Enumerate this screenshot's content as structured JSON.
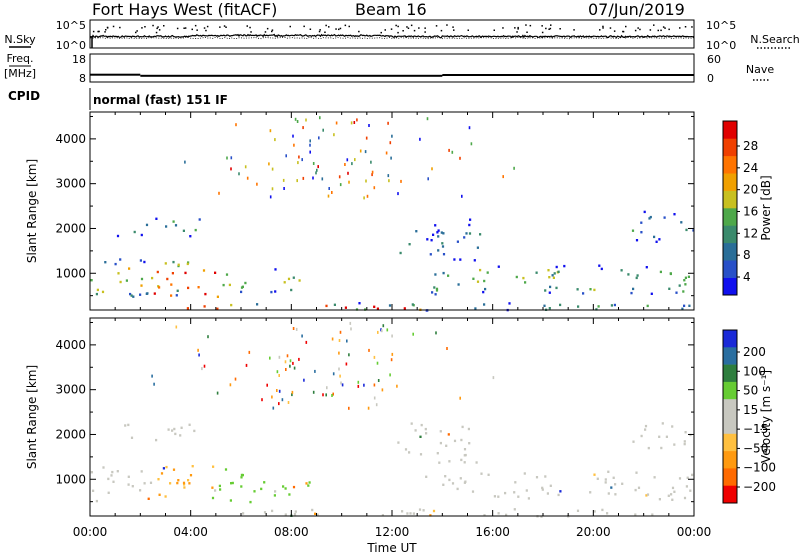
{
  "header": {
    "station": "Fort Hays West (fitACF)",
    "beam": "Beam 16",
    "date": "07/Jun/2019"
  },
  "chart_data": [
    {
      "type": "line",
      "panel": "noise",
      "left_label": "N.Sky",
      "right_label": "N.Search",
      "left_ticks": [
        "10^5",
        "10^0"
      ],
      "right_ticks": [
        "10^5",
        "10^0"
      ],
      "xlim": [
        0,
        24
      ],
      "series": [
        {
          "name": "N.Sky",
          "style": "solid dots",
          "level": 0.65
        },
        {
          "name": "N.Search",
          "style": "dotted",
          "level": 0.55
        }
      ]
    },
    {
      "type": "line",
      "panel": "frequency",
      "left_label": "Freq.",
      "left_unit": "[MHz]",
      "right_label": "Nave",
      "left_ticks": [
        "18",
        "8"
      ],
      "right_ticks": [
        "60",
        "0"
      ],
      "cpid_label": "CPID",
      "cpid_text": "normal (fast) 151 IF",
      "freq_segments": [
        {
          "x": [
            0,
            2
          ],
          "value": 10.6
        },
        {
          "x": [
            2,
            14
          ],
          "value": 10.2
        },
        {
          "x": [
            14,
            24
          ],
          "value": 10.5
        }
      ]
    },
    {
      "type": "heatmap",
      "panel": "power",
      "ylabel": "Slant Range [km]",
      "yticks": [
        1000,
        2000,
        3000,
        4000
      ],
      "ylim": [
        180,
        4600
      ],
      "xlim": [
        0,
        24
      ],
      "colorbar": {
        "label": "Power [dB]",
        "ticks": [
          4,
          8,
          12,
          16,
          20,
          24,
          28
        ],
        "colors": [
          "#1010ee",
          "#2850c8",
          "#2a6e98",
          "#3a8a6c",
          "#4ea84a",
          "#c8c020",
          "#f0a000",
          "#ff7400",
          "#f04000",
          "#e00000"
        ]
      },
      "regions": [
        {
          "t": [
            0,
            3.6
          ],
          "r": [
            500,
            1350
          ],
          "level": 0.55
        },
        {
          "t": [
            2.5,
            5.2
          ],
          "r": [
            450,
            1300
          ],
          "level": 0.8
        },
        {
          "t": [
            5.2,
            8.5
          ],
          "r": [
            600,
            1150
          ],
          "level": 0.45
        },
        {
          "t": [
            1.0,
            4.6
          ],
          "r": [
            1850,
            2250
          ],
          "level": 0.35
        },
        {
          "t": [
            13.2,
            24
          ],
          "r": [
            550,
            1200
          ],
          "level": 0.4
        },
        {
          "t": [
            12.2,
            15.5
          ],
          "r": [
            1300,
            2300
          ],
          "level": 0.2
        },
        {
          "t": [
            21.5,
            24
          ],
          "r": [
            1700,
            2400
          ],
          "level": 0.25
        },
        {
          "t": [
            3.5,
            14
          ],
          "r": [
            200,
            320
          ],
          "level": 0.85
        },
        {
          "t": [
            6,
            24
          ],
          "r": [
            190,
            360
          ],
          "level": 0.3
        }
      ]
    },
    {
      "type": "heatmap",
      "panel": "velocity",
      "ylabel": "Slant Range [km]",
      "yticks": [
        1000,
        2000,
        3000,
        4000
      ],
      "ylim": [
        180,
        4600
      ],
      "xlabel": "Time UT",
      "xticks": [
        "00:00",
        "04:00",
        "08:00",
        "12:00",
        "16:00",
        "20:00",
        "00:00"
      ],
      "xtick_hours": [
        0,
        4,
        8,
        12,
        16,
        20,
        24
      ],
      "xlim": [
        0,
        24
      ],
      "colorbar": {
        "label": "Velocity [m s⁻¹]",
        "ticks": [
          200,
          100,
          50,
          15,
          -15,
          -50,
          -100,
          -200
        ],
        "colors": [
          "#1a2ad8",
          "#2a6ea0",
          "#2e7e3e",
          "#66cc33",
          "#c8c8c0",
          "#c8c8c0",
          "#ffc040",
          "#ff9a10",
          "#ff6a00",
          "#ef0000"
        ]
      },
      "regions": [
        {
          "t": [
            0,
            2.5
          ],
          "r": [
            500,
            1350
          ],
          "class": "gray"
        },
        {
          "t": [
            2.5,
            5.0
          ],
          "r": [
            450,
            1350
          ],
          "class": "orange"
        },
        {
          "t": [
            4.8,
            8.8
          ],
          "r": [
            500,
            1250
          ],
          "class": "green"
        },
        {
          "t": [
            1.0,
            4.6
          ],
          "r": [
            1850,
            2250
          ],
          "class": "gray"
        },
        {
          "t": [
            13.2,
            24
          ],
          "r": [
            550,
            1200
          ],
          "class": "gray"
        },
        {
          "t": [
            12.2,
            15.5
          ],
          "r": [
            1300,
            2300
          ],
          "class": "gray"
        },
        {
          "t": [
            21.5,
            24
          ],
          "r": [
            1700,
            2400
          ],
          "class": "gray"
        },
        {
          "t": [
            8.5,
            14
          ],
          "r": [
            200,
            320
          ],
          "class": "orange"
        },
        {
          "t": [
            6,
            24
          ],
          "r": [
            190,
            360
          ],
          "class": "gray"
        }
      ]
    }
  ]
}
